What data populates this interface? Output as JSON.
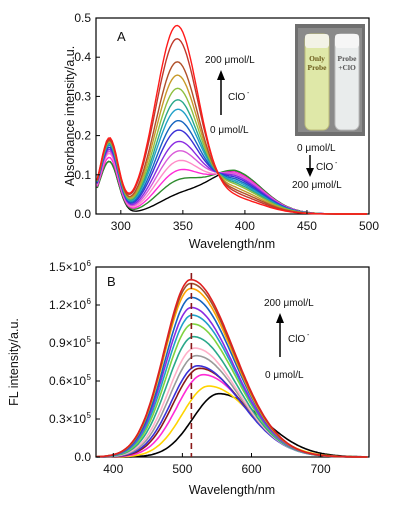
{
  "chart_data": [
    {
      "type": "line",
      "panel_label": "A",
      "xlabel": "Wavelength/nm",
      "ylabel": "Absorbance intensity/a.u.",
      "xlim": [
        280,
        500
      ],
      "ylim": [
        0.0,
        0.5
      ],
      "xticks": [
        300,
        350,
        400,
        450,
        500
      ],
      "xtick_labels": [
        "300",
        "350",
        "400",
        "450",
        "500"
      ],
      "yticks": [
        0.0,
        0.1,
        0.2,
        0.3,
        0.4,
        0.5
      ],
      "ytick_labels": [
        "0.0",
        "0.1",
        "0.2",
        "0.3",
        "0.4",
        "0.5"
      ],
      "annotations": {
        "rise_top": "200 μmol/L",
        "rise_bottom": "0 μmol/L",
        "rise_reagent": "ClO",
        "fall_top": "0 μmol/L",
        "fall_bottom": "200 μmol/L",
        "fall_reagent": "ClO",
        "superscript": "-"
      },
      "inset": {
        "vial_left_label": [
          "Only",
          "Probe"
        ],
        "vial_right_label": [
          "Probe",
          "+ClO"
        ]
      },
      "series_colors": [
        "#000000",
        "#2e8b2e",
        "#ff2bd6",
        "#ff8cc8",
        "#d95bd9",
        "#8a2be2",
        "#3a2fd6",
        "#1565c0",
        "#20a0c8",
        "#2aa88a",
        "#8fbf3f",
        "#c89a2a",
        "#b0502a",
        "#c0392b",
        "#ff1a1a"
      ],
      "series": [
        {
          "peak_345": 0.035,
          "peak_390": 0.11,
          "peak_290": 0.13
        },
        {
          "peak_345": 0.07,
          "peak_390": 0.11,
          "peak_290": 0.13
        },
        {
          "peak_345": 0.095,
          "peak_390": 0.105,
          "peak_290": 0.14
        },
        {
          "peak_345": 0.12,
          "peak_390": 0.1,
          "peak_290": 0.15
        },
        {
          "peak_345": 0.145,
          "peak_390": 0.1,
          "peak_290": 0.155
        },
        {
          "peak_345": 0.17,
          "peak_390": 0.095,
          "peak_290": 0.16
        },
        {
          "peak_345": 0.2,
          "peak_390": 0.09,
          "peak_290": 0.165
        },
        {
          "peak_345": 0.225,
          "peak_390": 0.085,
          "peak_290": 0.17
        },
        {
          "peak_345": 0.255,
          "peak_390": 0.08,
          "peak_290": 0.172
        },
        {
          "peak_345": 0.28,
          "peak_390": 0.075,
          "peak_290": 0.175
        },
        {
          "peak_345": 0.31,
          "peak_390": 0.07,
          "peak_290": 0.178
        },
        {
          "peak_345": 0.345,
          "peak_390": 0.062,
          "peak_290": 0.18
        },
        {
          "peak_345": 0.38,
          "peak_390": 0.055,
          "peak_290": 0.182
        },
        {
          "peak_345": 0.44,
          "peak_390": 0.048,
          "peak_290": 0.185
        },
        {
          "peak_345": 0.475,
          "peak_390": 0.04,
          "peak_290": 0.188
        }
      ]
    },
    {
      "type": "line",
      "panel_label": "B",
      "xlabel": "Wavelength/nm",
      "ylabel": "FL intensity/a.u.",
      "xlim": [
        375,
        770
      ],
      "ylim": [
        0,
        1500000
      ],
      "xticks": [
        400,
        500,
        600,
        700
      ],
      "xtick_labels": [
        "400",
        "500",
        "600",
        "700"
      ],
      "yticks": [
        0,
        300000,
        600000,
        900000,
        1200000,
        1500000
      ],
      "ytick_labels": [
        "0.0",
        "0.3×10",
        "0.6×10",
        "0.9×10",
        "1.2×10",
        "1.5×10"
      ],
      "ytick_exponent": "5",
      "ytick_exponent_top": "6",
      "ytick_exponent_12": "6",
      "dashed_line_x": 513,
      "annotations": {
        "rise_top": "200 μmol/L",
        "rise_bottom": "0 μmol/L",
        "rise_reagent": "ClO",
        "superscript": "-"
      },
      "series_colors": [
        "#000000",
        "#ffd400",
        "#ff2bd6",
        "#8b1a1a",
        "#3a2fd6",
        "#9a9a9a",
        "#ffb0c8",
        "#2aa88a",
        "#7fd33f",
        "#20a0c8",
        "#8a2be2",
        "#1565c0",
        "#ffa500",
        "#a0522d",
        "#e02020"
      ],
      "series": [
        {
          "peak_x": 553,
          "peak_y": 500000
        },
        {
          "peak_x": 538,
          "peak_y": 560000
        },
        {
          "peak_x": 530,
          "peak_y": 650000
        },
        {
          "peak_x": 525,
          "peak_y": 700000
        },
        {
          "peak_x": 522,
          "peak_y": 720000
        },
        {
          "peak_x": 520,
          "peak_y": 800000
        },
        {
          "peak_x": 518,
          "peak_y": 860000
        },
        {
          "peak_x": 516,
          "peak_y": 950000
        },
        {
          "peak_x": 515,
          "peak_y": 1050000
        },
        {
          "peak_x": 514,
          "peak_y": 1120000
        },
        {
          "peak_x": 513,
          "peak_y": 1180000
        },
        {
          "peak_x": 513,
          "peak_y": 1260000
        },
        {
          "peak_x": 512,
          "peak_y": 1330000
        },
        {
          "peak_x": 512,
          "peak_y": 1370000
        },
        {
          "peak_x": 512,
          "peak_y": 1400000
        }
      ]
    }
  ]
}
